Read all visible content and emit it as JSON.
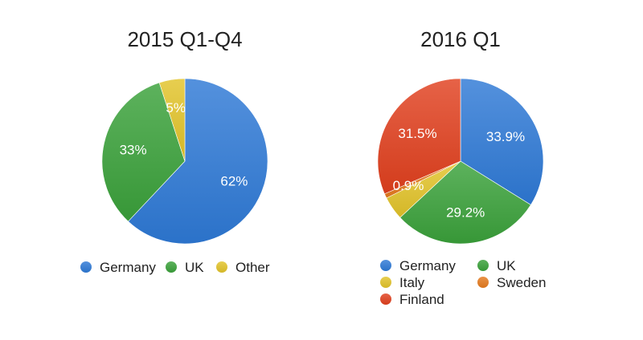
{
  "chart_data": [
    {
      "type": "pie",
      "title": "2015 Q1-Q4",
      "slices": [
        {
          "label": "Germany",
          "value": 62,
          "text": "62%",
          "color": "#2e79d6"
        },
        {
          "label": "UK",
          "value": 33,
          "text": "33%",
          "color": "#3aa13a"
        },
        {
          "label": "Other",
          "value": 5,
          "text": "5%",
          "color": "#e2c32a"
        }
      ],
      "legend": [
        {
          "label": "Germany",
          "color": "#2e79d6"
        },
        {
          "label": "UK",
          "color": "#3aa13a"
        },
        {
          "label": "Other",
          "color": "#e2c32a"
        }
      ],
      "legend_position": "bottom"
    },
    {
      "type": "pie",
      "title": "2016 Q1",
      "slices": [
        {
          "label": "Germany",
          "value": 33.9,
          "text": "33.9%",
          "color": "#2e79d6"
        },
        {
          "label": "UK",
          "value": 29.2,
          "text": "29.2%",
          "color": "#3aa13a"
        },
        {
          "label": "Italy",
          "value": 4.6,
          "text": "4.6%",
          "color": "#e2c32a"
        },
        {
          "label": "Sweden",
          "value": 0.9,
          "text": "0.9%",
          "color": "#e57a1e"
        },
        {
          "label": "Finland",
          "value": 31.5,
          "text": "31.5%",
          "color": "#e0401e"
        }
      ],
      "legend": [
        {
          "label": "Germany",
          "color": "#2e79d6"
        },
        {
          "label": "UK",
          "color": "#3aa13a"
        },
        {
          "label": "Italy",
          "color": "#e2c32a"
        },
        {
          "label": "Sweden",
          "color": "#e57a1e"
        },
        {
          "label": "Finland",
          "color": "#e0401e"
        }
      ],
      "legend_position": "bottom"
    }
  ]
}
